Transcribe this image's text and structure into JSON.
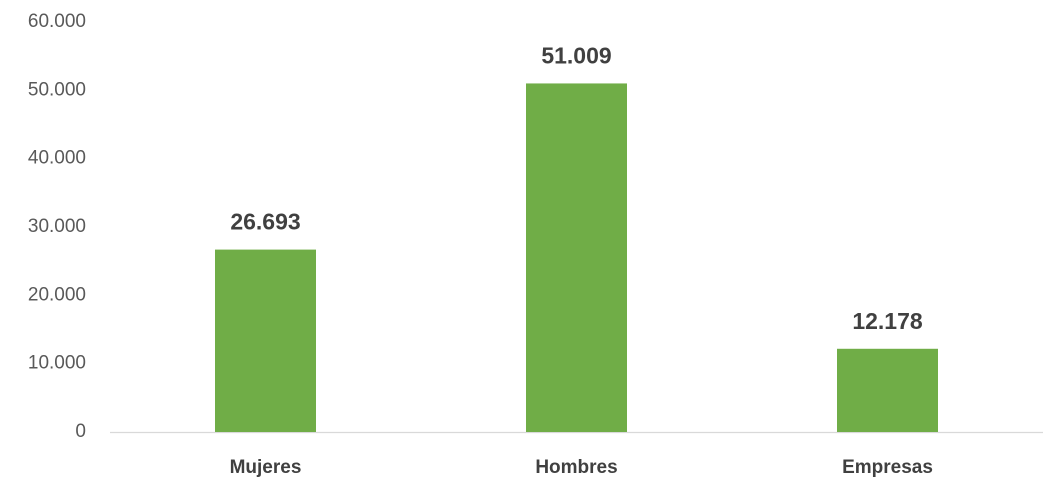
{
  "chart_data": {
    "type": "bar",
    "categories": [
      "Mujeres",
      "Hombres",
      "Empresas"
    ],
    "values": [
      26693,
      51009,
      12178
    ],
    "data_labels": [
      "26.693",
      "51.009",
      "12.178"
    ],
    "y_ticks": [
      0,
      10000,
      20000,
      30000,
      40000,
      50000,
      60000
    ],
    "y_tick_labels": [
      "0",
      "10.000",
      "20.000",
      "30.000",
      "40.000",
      "50.000",
      "60.000"
    ],
    "ylim": [
      0,
      60000
    ],
    "grid": false,
    "legend": "none",
    "bar_color": "#70ad47",
    "title": "",
    "xlabel": "",
    "ylabel": ""
  }
}
